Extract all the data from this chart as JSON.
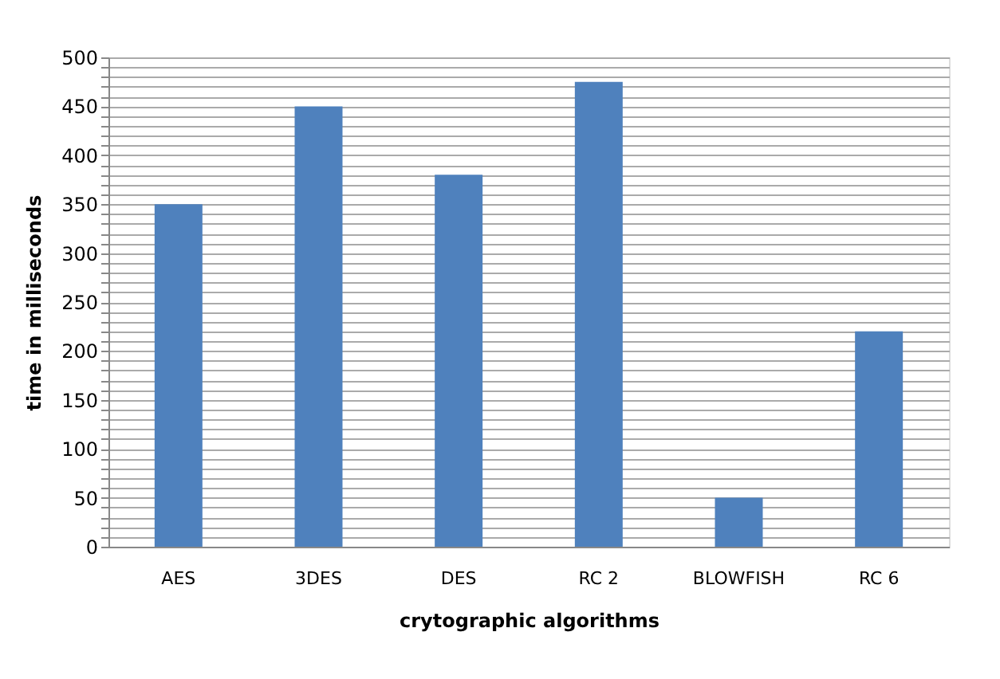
{
  "chart_data": {
    "type": "bar",
    "xlabel": "crytographic algorithms",
    "ylabel": "time in milliseconds",
    "categories": [
      "AES",
      "3DES",
      "DES",
      "RC 2",
      "BLOWFISH",
      "RC 6"
    ],
    "values": [
      350,
      450,
      380,
      475,
      50,
      220
    ],
    "color": "#4f81bd",
    "ylim": [
      0,
      500
    ],
    "yticks": [
      0,
      {
        "value": 10,
        "label": null
      },
      {
        "value": 20,
        "label": null
      },
      {
        "value": 30,
        "label": null
      },
      {
        "value": 40,
        "label": null
      },
      50,
      {
        "value": 60,
        "label": null
      },
      {
        "value": 70,
        "label": null
      },
      {
        "value": 80,
        "label": null
      },
      {
        "value": 90,
        "label": null
      },
      100,
      {
        "value": 110,
        "label": null
      },
      {
        "value": 120,
        "label": null
      },
      {
        "value": 130,
        "label": null
      },
      {
        "value": 140,
        "label": null
      },
      150,
      {
        "value": 160,
        "label": null
      },
      {
        "value": 170,
        "label": null
      },
      {
        "value": 180,
        "label": null
      },
      {
        "value": 190,
        "label": null
      },
      200,
      {
        "value": 210,
        "label": null
      },
      {
        "value": 220,
        "label": null
      },
      {
        "value": 230,
        "label": null
      },
      {
        "value": 240,
        "label": null
      },
      250,
      {
        "value": 260,
        "label": null
      },
      {
        "value": 270,
        "label": null
      },
      {
        "value": 280,
        "label": null
      },
      {
        "value": 290,
        "label": null
      },
      300,
      {
        "value": 310,
        "label": null
      },
      {
        "value": 320,
        "label": null
      },
      {
        "value": 330,
        "label": null
      },
      {
        "value": 340,
        "label": null
      },
      350,
      {
        "value": 360,
        "label": null
      },
      {
        "value": 370,
        "label": null
      },
      {
        "value": 380,
        "label": null
      },
      {
        "value": 390,
        "label": null
      },
      400,
      {
        "value": 410,
        "label": null
      },
      {
        "value": 420,
        "label": null
      },
      {
        "value": 430,
        "label": null
      },
      {
        "value": 440,
        "label": null
      },
      450,
      {
        "value": 460,
        "label": null
      },
      {
        "value": 470,
        "label": null
      },
      {
        "value": 480,
        "label": null
      },
      {
        "value": 490,
        "label": null
      },
      500
    ],
    "grid": "y"
  }
}
